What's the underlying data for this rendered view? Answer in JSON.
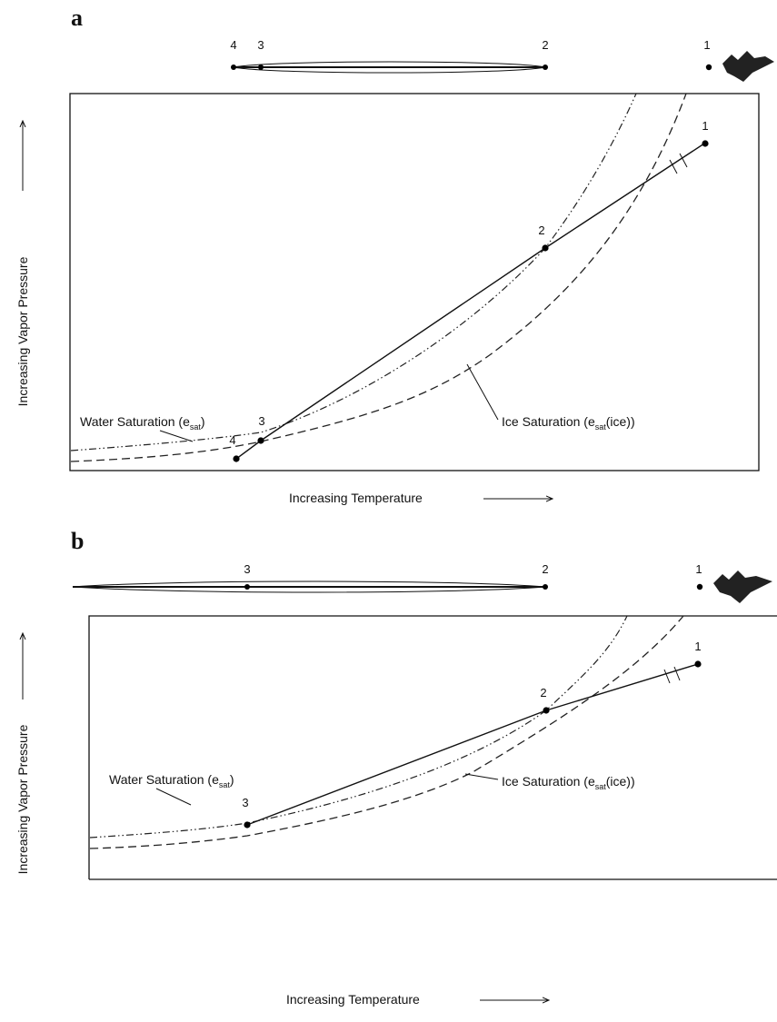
{
  "panels": [
    {
      "label": "a",
      "strip_points": [
        "4",
        "3",
        "2",
        "1"
      ],
      "plot_points": [
        "4",
        "3",
        "2",
        "1"
      ],
      "water_label": [
        "Water Saturation (e",
        "sat",
        ")"
      ],
      "ice_label": [
        "Ice Saturation (e",
        "sat",
        "(ice))"
      ],
      "x_axis_label": "Increasing Temperature",
      "y_axis_label": "Increasing Vapor Pressure"
    },
    {
      "label": "b",
      "strip_points": [
        "3",
        "2",
        "1"
      ],
      "plot_points": [
        "3",
        "2",
        "1"
      ],
      "water_label": [
        "Water Saturation (e",
        "sat",
        ")"
      ],
      "ice_label": [
        "Ice Saturation (e",
        "sat",
        "(ice))"
      ],
      "x_axis_label": "Increasing Temperature",
      "y_axis_label": "Increasing Vapor Pressure"
    }
  ]
}
